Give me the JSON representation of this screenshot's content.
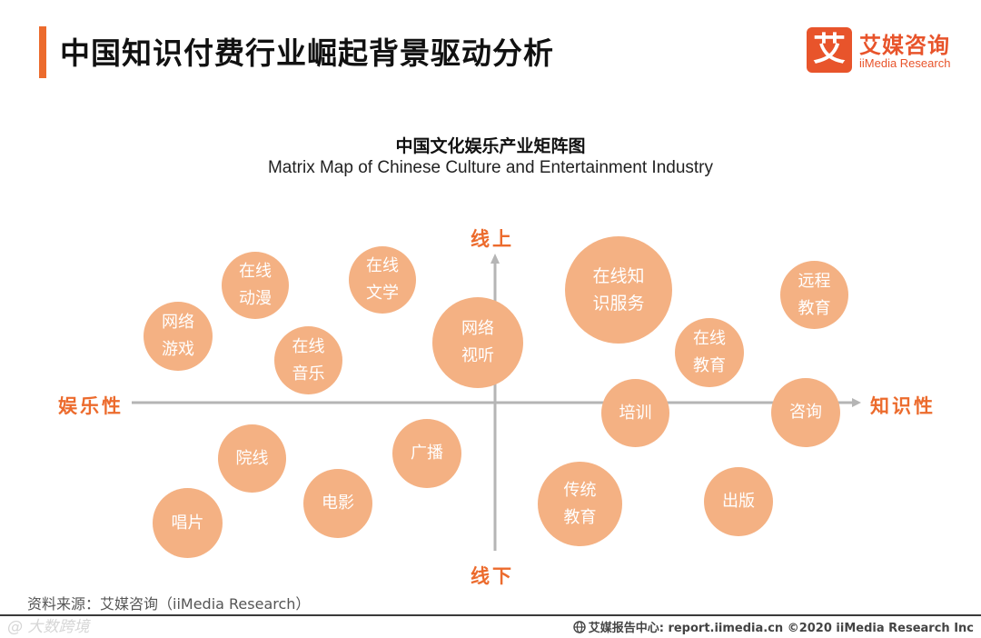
{
  "header": {
    "title": "中国知识付费行业崛起背景驱动分析",
    "logo_mark": "艾",
    "logo_cn": "艾媒咨询",
    "logo_en": "iiMedia Research"
  },
  "diagram": {
    "title_cn": "中国文化娱乐产业矩阵图",
    "title_en": "Matrix Map of Chinese Culture and Entertainment Industry",
    "axes": {
      "top": "线上",
      "bottom": "线下",
      "left": "娱乐性",
      "right": "知识性"
    },
    "bubbles": [
      {
        "id": "online-animation",
        "lines": [
          "在线",
          "动漫"
        ]
      },
      {
        "id": "online-literature",
        "lines": [
          "在线",
          "文学"
        ]
      },
      {
        "id": "online-game",
        "lines": [
          "网络",
          "游戏"
        ]
      },
      {
        "id": "online-music",
        "lines": [
          "在线",
          "音乐"
        ]
      },
      {
        "id": "online-video-audio",
        "lines": [
          "网络",
          "视听"
        ]
      },
      {
        "id": "online-knowledge-service",
        "lines": [
          "在线知",
          "识服务"
        ]
      },
      {
        "id": "remote-education",
        "lines": [
          "远程",
          "教育"
        ]
      },
      {
        "id": "online-education",
        "lines": [
          "在线",
          "教育"
        ]
      },
      {
        "id": "training",
        "lines": [
          "培训"
        ]
      },
      {
        "id": "consulting",
        "lines": [
          "咨询"
        ]
      },
      {
        "id": "cinema-chain",
        "lines": [
          "院线"
        ]
      },
      {
        "id": "broadcasting",
        "lines": [
          "广播"
        ]
      },
      {
        "id": "movie",
        "lines": [
          "电影"
        ]
      },
      {
        "id": "record",
        "lines": [
          "唱片"
        ]
      },
      {
        "id": "traditional-education",
        "lines": [
          "传统",
          "教育"
        ]
      },
      {
        "id": "publishing",
        "lines": [
          "出版"
        ]
      }
    ]
  },
  "footer": {
    "source": "资料来源：艾媒咨询（iiMedia Research）",
    "watermark": "@ 大数跨境",
    "copyright": "艾媒报告中心: report.iimedia.cn  ©2020  iiMedia Research  Inc"
  }
}
